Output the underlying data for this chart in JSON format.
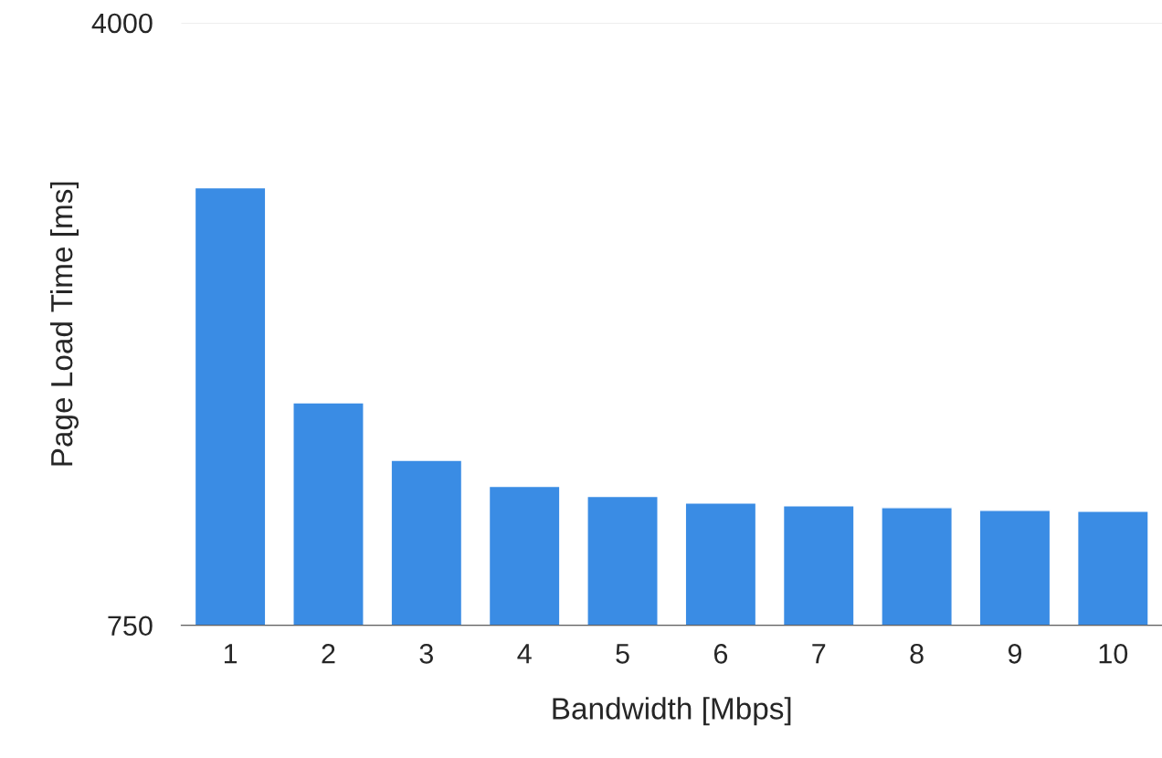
{
  "chart_data": {
    "type": "bar",
    "xlabel": "Bandwidth [Mbps]",
    "ylabel": "Page Load Time [ms]",
    "categories": [
      "1",
      "2",
      "3",
      "4",
      "5",
      "6",
      "7",
      "8",
      "9",
      "10"
    ],
    "values": [
      3110,
      1950,
      1640,
      1500,
      1445,
      1410,
      1395,
      1385,
      1370,
      1365
    ],
    "color": "#3a8ce4",
    "ylim": [
      750,
      4000
    ],
    "yticks": [
      750,
      4000
    ],
    "grid": "y"
  }
}
